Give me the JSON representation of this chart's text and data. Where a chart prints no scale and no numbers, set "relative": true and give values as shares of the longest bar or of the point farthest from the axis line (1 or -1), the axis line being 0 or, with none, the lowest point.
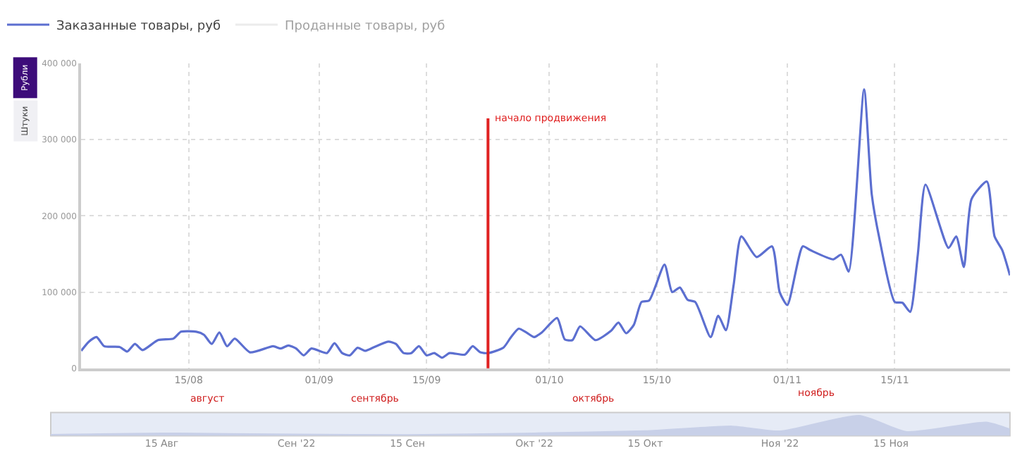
{
  "chart_data": [
    {
      "type": "line",
      "legend": "top left",
      "grid": true,
      "line_style": "solid",
      "series": [
        {
          "name": "Заказанные товары, руб",
          "color": "#5c6fd0",
          "x": [
            "2022-08-01",
            "2022-08-02",
            "2022-08-03",
            "2022-08-04",
            "2022-08-06",
            "2022-08-07",
            "2022-08-08",
            "2022-08-09",
            "2022-08-11",
            "2022-08-13",
            "2022-08-14",
            "2022-08-16",
            "2022-08-17",
            "2022-08-18",
            "2022-08-19",
            "2022-08-20",
            "2022-08-21",
            "2022-08-23",
            "2022-08-26",
            "2022-08-27",
            "2022-08-28",
            "2022-08-29",
            "2022-08-30",
            "2022-08-31",
            "2022-09-02",
            "2022-09-03",
            "2022-09-04",
            "2022-09-05",
            "2022-09-06",
            "2022-09-07",
            "2022-09-08",
            "2022-09-10",
            "2022-09-11",
            "2022-09-12",
            "2022-09-13",
            "2022-09-14",
            "2022-09-15",
            "2022-09-16",
            "2022-09-17",
            "2022-09-18",
            "2022-09-20",
            "2022-09-21",
            "2022-09-22",
            "2022-09-23",
            "2022-09-25",
            "2022-09-26",
            "2022-09-27",
            "2022-09-28",
            "2022-09-29",
            "2022-09-30",
            "2022-10-02",
            "2022-10-03",
            "2022-10-04",
            "2022-10-05",
            "2022-10-07",
            "2022-10-09",
            "2022-10-10",
            "2022-10-11",
            "2022-10-12",
            "2022-10-13",
            "2022-10-14",
            "2022-10-16",
            "2022-10-17",
            "2022-10-18",
            "2022-10-19",
            "2022-10-20",
            "2022-10-22",
            "2022-10-23",
            "2022-10-24",
            "2022-10-25",
            "2022-10-26",
            "2022-10-28",
            "2022-10-30",
            "2022-10-31",
            "2022-11-01",
            "2022-11-03",
            "2022-11-04",
            "2022-11-07",
            "2022-11-08",
            "2022-11-09",
            "2022-11-11",
            "2022-11-12",
            "2022-11-13",
            "2022-11-15",
            "2022-11-16",
            "2022-11-17",
            "2022-11-18",
            "2022-11-19",
            "2022-11-22",
            "2022-11-23",
            "2022-11-24",
            "2022-11-25",
            "2022-11-27",
            "2022-11-28",
            "2022-11-29",
            "2022-11-30"
          ],
          "values": [
            23000,
            35000,
            41000,
            29000,
            28000,
            22000,
            32000,
            24000,
            37000,
            39000,
            48000,
            48000,
            44000,
            32000,
            47000,
            29000,
            39000,
            21000,
            29000,
            26000,
            30000,
            26000,
            17000,
            26000,
            20000,
            33000,
            20000,
            17000,
            27000,
            23000,
            27000,
            35000,
            32000,
            20000,
            20000,
            29000,
            17000,
            20000,
            14000,
            20000,
            18000,
            29000,
            21000,
            20000,
            27000,
            41000,
            52000,
            47000,
            41000,
            47000,
            66000,
            38000,
            37000,
            55000,
            37000,
            49000,
            60000,
            46000,
            57000,
            87000,
            89000,
            136000,
            100000,
            106000,
            90000,
            87000,
            41000,
            69000,
            50000,
            109000,
            173000,
            146000,
            160000,
            100000,
            83000,
            160000,
            155000,
            143000,
            149000,
            127000,
            366000,
            228000,
            170000,
            87000,
            86000,
            74000,
            149000,
            241000,
            158000,
            173000,
            133000,
            222000,
            245000,
            173000,
            155000,
            122000
          ]
        },
        {
          "name": "Проданные товары, руб",
          "color": "#d8d8d8"
        }
      ],
      "xlim": [
        "2022-08-01",
        "2022-11-30"
      ],
      "xticks": [
        {
          "value": "2022-08-15",
          "label": "15/08"
        },
        {
          "value": "2022-09-01",
          "label": "01/09"
        },
        {
          "value": "2022-09-15",
          "label": "15/09"
        },
        {
          "value": "2022-10-01",
          "label": "01/10"
        },
        {
          "value": "2022-10-15",
          "label": "15/10"
        },
        {
          "value": "2022-11-01",
          "label": "01/11"
        },
        {
          "value": "2022-11-15",
          "label": "15/11"
        }
      ],
      "ylim": [
        0,
        400000
      ],
      "yticks": [
        0,
        {
          "value": 100000,
          "label": "100 000"
        },
        {
          "value": 200000,
          "label": "200 000"
        },
        {
          "value": 300000,
          "label": "300 000"
        },
        {
          "value": 400000,
          "label": "400 000"
        }
      ],
      "ref_lines": [
        {
          "axis": "x",
          "value": "2022-09-23",
          "label": "начало продвижения",
          "color": "#e02020"
        }
      ],
      "annotations": [
        "Рубли",
        "Штуки",
        "август",
        "сентябрь",
        "октябрь",
        "ноябрь"
      ]
    },
    {
      "type": "area",
      "relative": true,
      "grid": false,
      "series": [
        {
          "color": "#c8d0e8",
          "x": [
            "2022-08-01",
            "2022-08-15",
            "2022-09-01",
            "2022-09-15",
            "2022-10-01",
            "2022-10-15",
            "2022-10-26",
            "2022-11-01",
            "2022-11-11",
            "2022-11-17",
            "2022-11-27",
            "2022-11-30"
          ],
          "values": [
            0.06,
            0.13,
            0.07,
            0.05,
            0.13,
            0.24,
            0.47,
            0.23,
            1,
            0.2,
            0.67,
            0.33
          ]
        }
      ],
      "xlim": [
        "2022-08-01",
        "2022-11-30"
      ],
      "xticks": [
        {
          "value": "2022-08-15",
          "label": "15 Авг"
        },
        {
          "value": "2022-09-01",
          "label": "Сен '22"
        },
        {
          "value": "2022-09-15",
          "label": "15 Сен"
        },
        {
          "value": "2022-10-01",
          "label": "Окт '22"
        },
        {
          "value": "2022-10-15",
          "label": "15 Окт"
        },
        {
          "value": "2022-11-01",
          "label": "Ноя '22"
        },
        {
          "value": "2022-11-15",
          "label": "15 Ноя"
        }
      ]
    }
  ]
}
